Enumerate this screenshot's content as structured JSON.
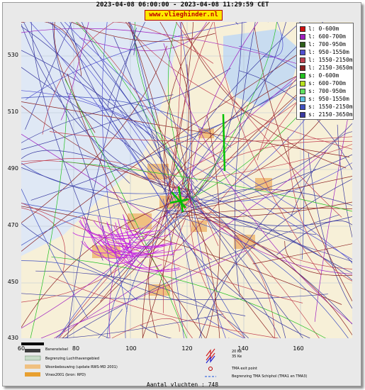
{
  "header": {
    "title": "2023-04-08 06:00:00 - 2023-04-08 11:29:59 CET",
    "brand": "www.vlieghinder.nl"
  },
  "legend": [
    {
      "label": "l: 0-600m",
      "color": "#d01010"
    },
    {
      "label": "l: 600-700m",
      "color": "#a020c0"
    },
    {
      "label": "l: 700-950m",
      "color": "#2e5e1a"
    },
    {
      "label": "l: 950-1550m",
      "color": "#5050d0"
    },
    {
      "label": "l: 1550-2150m",
      "color": "#c04050"
    },
    {
      "label": "l: 2150-3650m",
      "color": "#8a2020"
    },
    {
      "label": "s: 0-600m",
      "color": "#20c020"
    },
    {
      "label": "s: 600-700m",
      "color": "#b8e020"
    },
    {
      "label": "s: 700-950m",
      "color": "#60e060"
    },
    {
      "label": "s: 950-1550m",
      "color": "#60c0e0"
    },
    {
      "label": "s: 1550-2150m",
      "color": "#4050c0"
    },
    {
      "label": "s: 2150-3650m",
      "color": "#3a3aa0"
    }
  ],
  "axes": {
    "y_ticks": [
      "530",
      "510",
      "490",
      "470",
      "450",
      "430"
    ],
    "x_ticks": [
      "60",
      "80",
      "100",
      "120",
      "140",
      "160"
    ]
  },
  "bottom_legend": {
    "runway": "Banenstelsel",
    "airport_boundary": "Begrenzing Luchthavengebied",
    "housing": "Woonbebouwing (update RWS-MD 2001)",
    "vinex": "Vinex2001 (bron: RPD)",
    "ke_20": "20 Ke",
    "ke_35": "35 Ke",
    "tma_exit": "TMA exit point",
    "tma_boundary": "Begrenzing TMA Schiphol  (TMA1 en TMA3)"
  },
  "footer": {
    "flights": "Aantal vluchten : 748"
  },
  "colors": {
    "sea": "#dfe8f5",
    "land": "#f7f0d8",
    "urban": "#f0c080",
    "water": "#a8c8e8"
  }
}
